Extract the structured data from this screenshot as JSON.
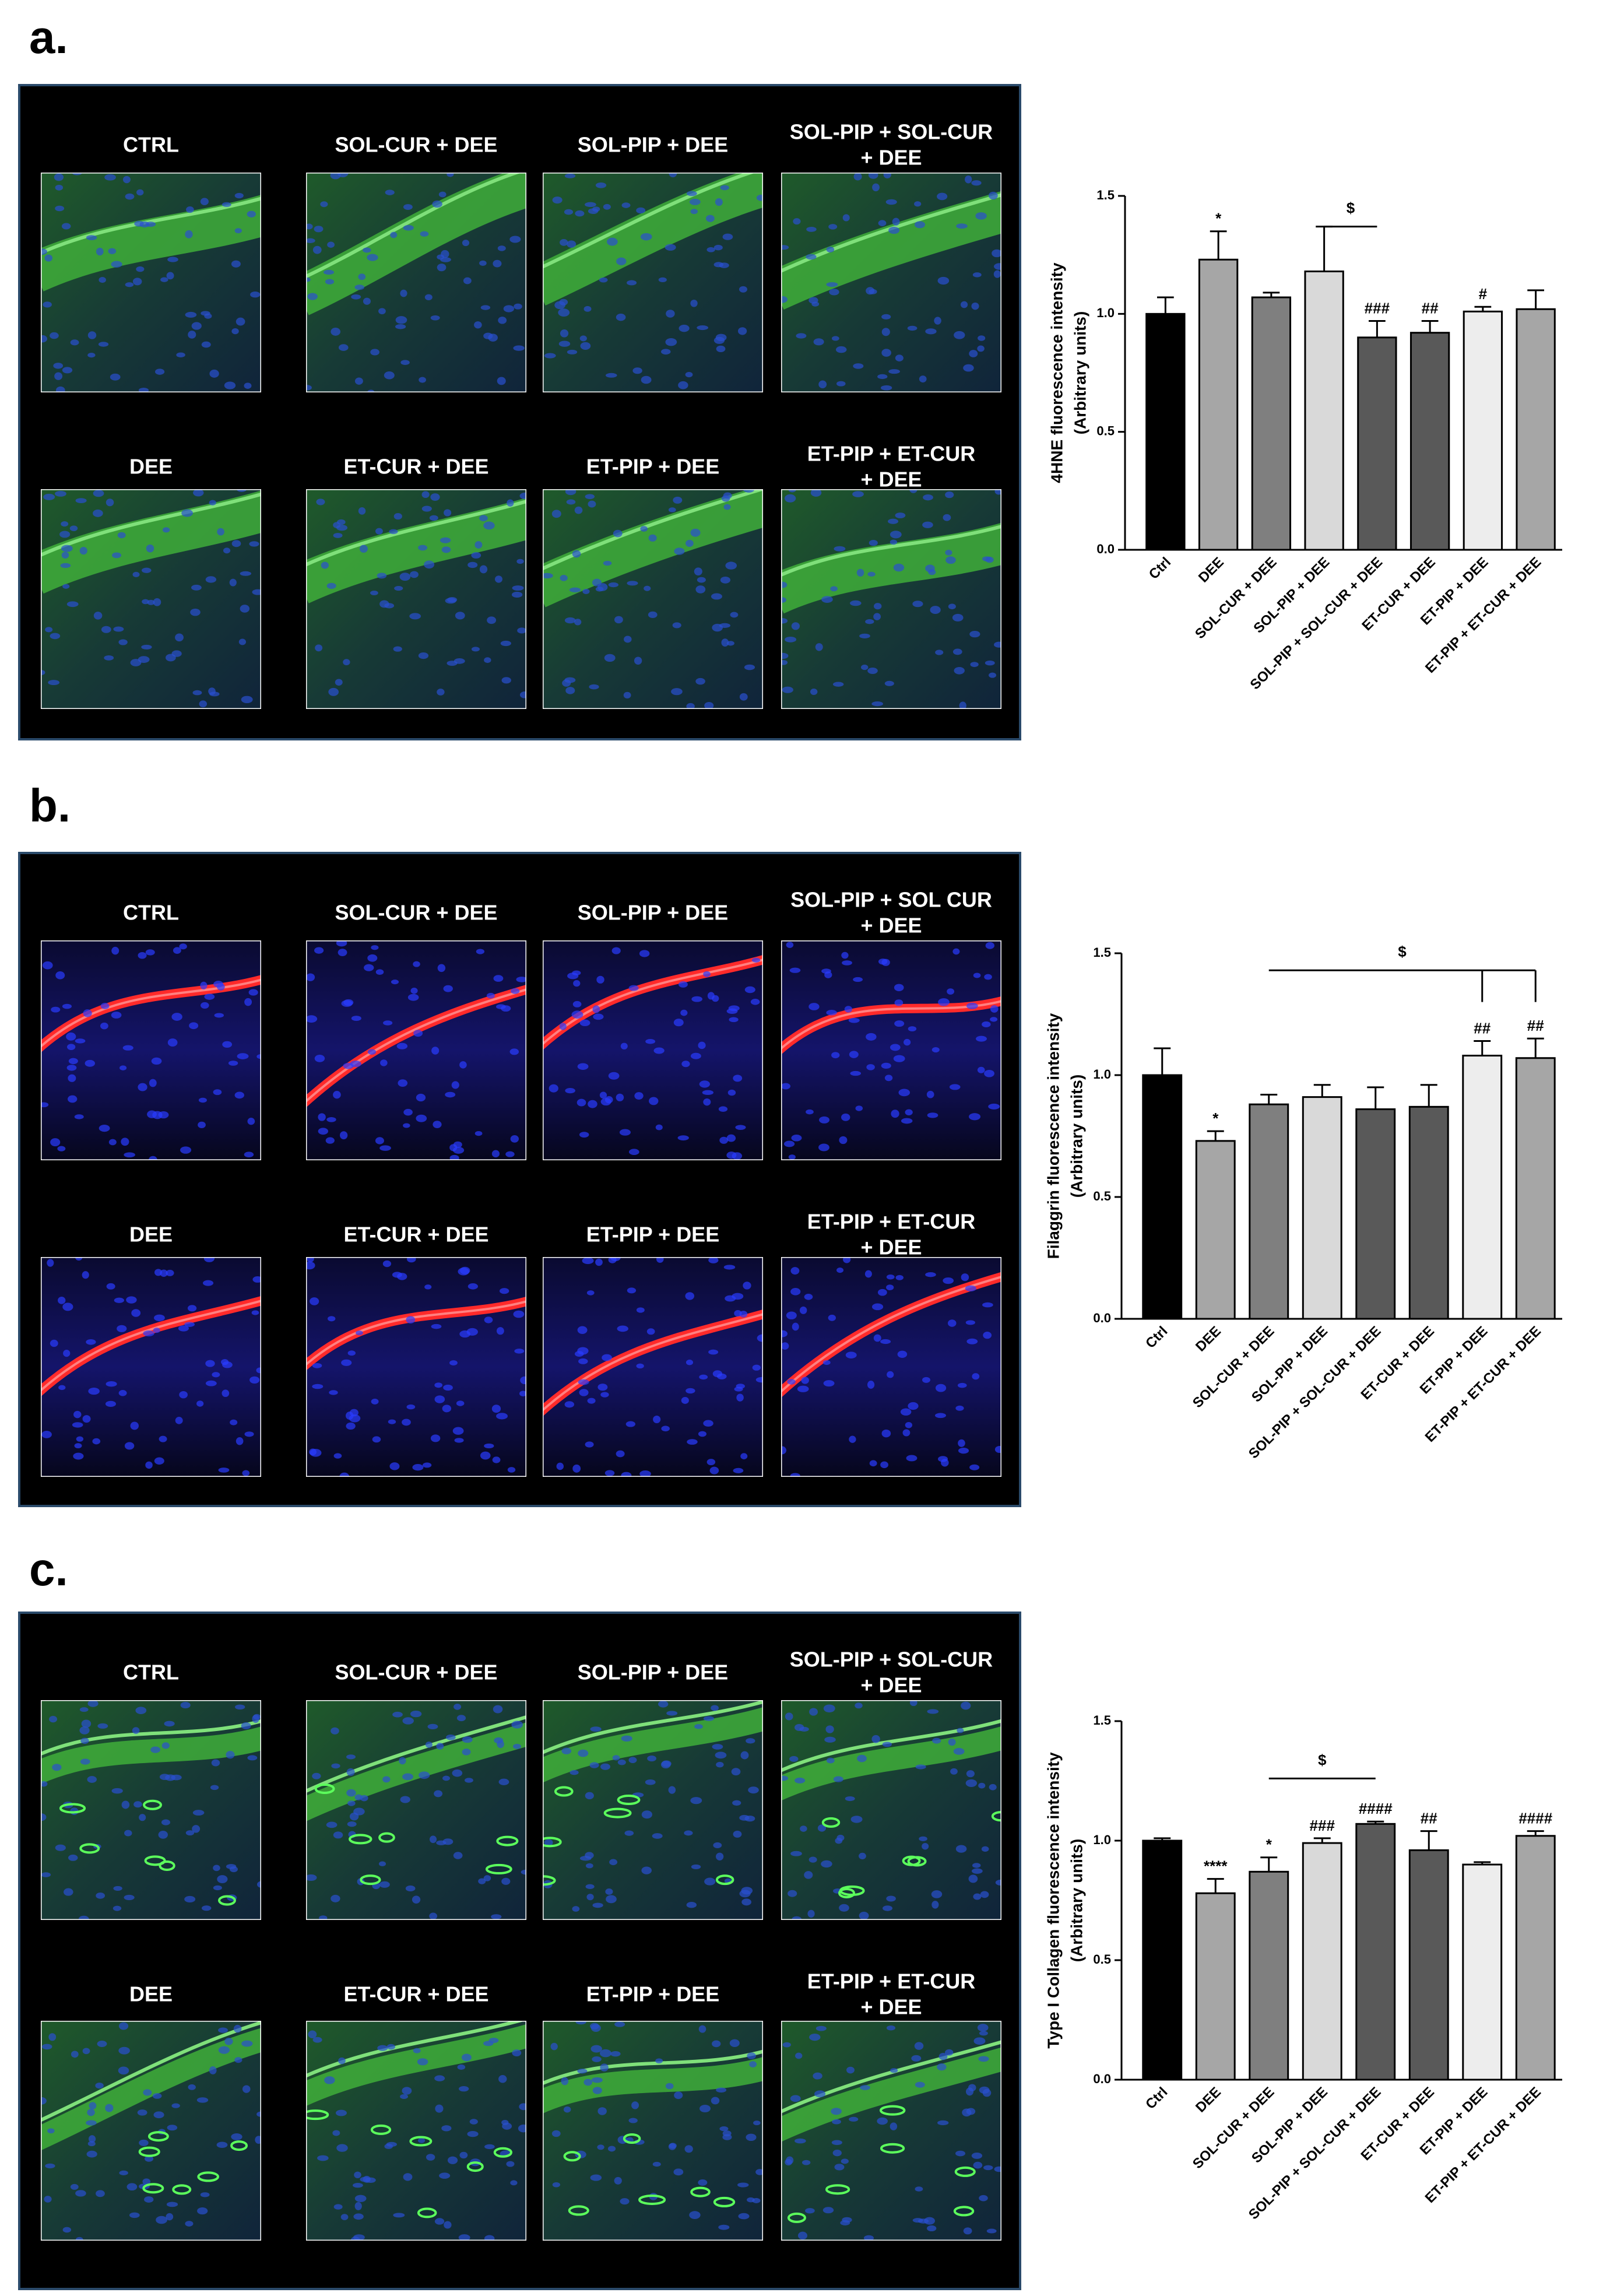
{
  "panels": [
    {
      "letter": "a.",
      "labels": [
        [
          "CTRL"
        ],
        [
          "SOL-CUR + DEE"
        ],
        [
          "SOL-PIP + DEE"
        ],
        [
          "SOL-PIP + SOL-CUR",
          "+ DEE"
        ],
        [
          "DEE"
        ],
        [
          "ET-CUR + DEE"
        ],
        [
          "ET-PIP + DEE"
        ],
        [
          "ET-PIP + ET-CUR",
          "+ DEE"
        ]
      ]
    },
    {
      "letter": "b.",
      "labels": [
        [
          "CTRL"
        ],
        [
          "SOL-CUR + DEE"
        ],
        [
          "SOL-PIP + DEE"
        ],
        [
          "SOL-PIP + SOL CUR",
          "+ DEE"
        ],
        [
          "DEE"
        ],
        [
          "ET-CUR + DEE"
        ],
        [
          "ET-PIP + DEE"
        ],
        [
          "ET-PIP + ET-CUR",
          "+ DEE"
        ]
      ]
    },
    {
      "letter": "c.",
      "labels": [
        [
          "CTRL"
        ],
        [
          "SOL-CUR + DEE"
        ],
        [
          "SOL-PIP + DEE"
        ],
        [
          "SOL-PIP + SOL-CUR",
          "+ DEE"
        ],
        [
          "DEE"
        ],
        [
          "ET-CUR + DEE"
        ],
        [
          "ET-PIP + DEE"
        ],
        [
          "ET-PIP + ET-CUR",
          "+ DEE"
        ]
      ]
    }
  ],
  "chart_data": [
    {
      "type": "bar",
      "ylabel": [
        "4HNE fluorescence intensity",
        "(Arbitrary units)"
      ],
      "categories": [
        "Ctrl",
        "DEE",
        "SOL-CUR + DEE",
        "SOL-PIP + DEE",
        "SOL-PIP + SOL-CUR + DEE",
        "ET-CUR + DEE",
        "ET-PIP + DEE",
        "ET-PIP + ET-CUR + DEE"
      ],
      "values": [
        1.0,
        1.23,
        1.07,
        1.18,
        0.9,
        0.92,
        1.01,
        1.02
      ],
      "errors": [
        0.07,
        0.12,
        0.02,
        0.19,
        0.07,
        0.05,
        0.02,
        0.08
      ],
      "colors": [
        "#000000",
        "#a6a6a6",
        "#7f7f7f",
        "#d9d9d9",
        "#595959",
        "#595959",
        "#ededed",
        "#a6a6a6"
      ],
      "annotations": [
        null,
        "*",
        null,
        null,
        "###",
        "##",
        "#",
        null
      ],
      "bracket_label": "$",
      "ylim": [
        0,
        1.5
      ],
      "yticks": [
        {
          "value": 0,
          "label": "0.0"
        },
        {
          "value": 0.5,
          "label": "0.5"
        },
        {
          "value": 1,
          "label": "1.0"
        },
        {
          "value": 1.5,
          "label": "1.5"
        }
      ]
    },
    {
      "type": "bar",
      "ylabel": [
        "Filaggrin fluorescence intensity",
        "(Arbitrary units)"
      ],
      "categories": [
        "Ctrl",
        "DEE",
        "SOL-CUR + DEE",
        "SOL-PIP + DEE",
        "SOL-PIP + SOL-CUR + DEE",
        "ET-CUR + DEE",
        "ET-PIP + DEE",
        "ET-PIP + ET-CUR + DEE"
      ],
      "values": [
        1.0,
        0.73,
        0.88,
        0.91,
        0.86,
        0.87,
        1.08,
        1.07
      ],
      "errors": [
        0.11,
        0.04,
        0.04,
        0.05,
        0.09,
        0.09,
        0.06,
        0.08
      ],
      "colors": [
        "#000000",
        "#a6a6a6",
        "#7f7f7f",
        "#d9d9d9",
        "#595959",
        "#595959",
        "#ededed",
        "#a6a6a6"
      ],
      "annotations": [
        null,
        "*",
        null,
        null,
        null,
        null,
        "##",
        "##"
      ],
      "bracket_label": "$",
      "ylim": [
        0,
        1.5
      ],
      "yticks": [
        {
          "value": 0,
          "label": "0.0"
        },
        {
          "value": 0.5,
          "label": "0.5"
        },
        {
          "value": 1,
          "label": "1.0"
        },
        {
          "value": 1.5,
          "label": "1.5"
        }
      ]
    },
    {
      "type": "bar",
      "ylabel": [
        "Type I Collagen fluorescence intensity",
        "(Arbitrary units)"
      ],
      "categories": [
        "Ctrl",
        "DEE",
        "SOL-CUR + DEE",
        "SOL-PIP + DEE",
        "SOL-PIP + SOL-CUR + DEE",
        "ET-CUR + DEE",
        "ET-PIP + DEE",
        "ET-PIP + ET-CUR + DEE"
      ],
      "values": [
        1.0,
        0.78,
        0.87,
        0.99,
        1.07,
        0.96,
        0.9,
        1.02
      ],
      "errors": [
        0.01,
        0.06,
        0.06,
        0.02,
        0.01,
        0.08,
        0.01,
        0.02
      ],
      "colors": [
        "#000000",
        "#a6a6a6",
        "#7f7f7f",
        "#d9d9d9",
        "#595959",
        "#595959",
        "#ededed",
        "#a6a6a6"
      ],
      "annotations": [
        null,
        "****",
        "*",
        "###",
        "####",
        "##",
        null,
        "####"
      ],
      "bracket_label": "$",
      "ylim": [
        0,
        1.5
      ],
      "yticks": [
        {
          "value": 0,
          "label": "0.0"
        },
        {
          "value": 0.5,
          "label": "0.5"
        },
        {
          "value": 1,
          "label": "1.0"
        },
        {
          "value": 1.5,
          "label": "1.5"
        }
      ]
    }
  ]
}
